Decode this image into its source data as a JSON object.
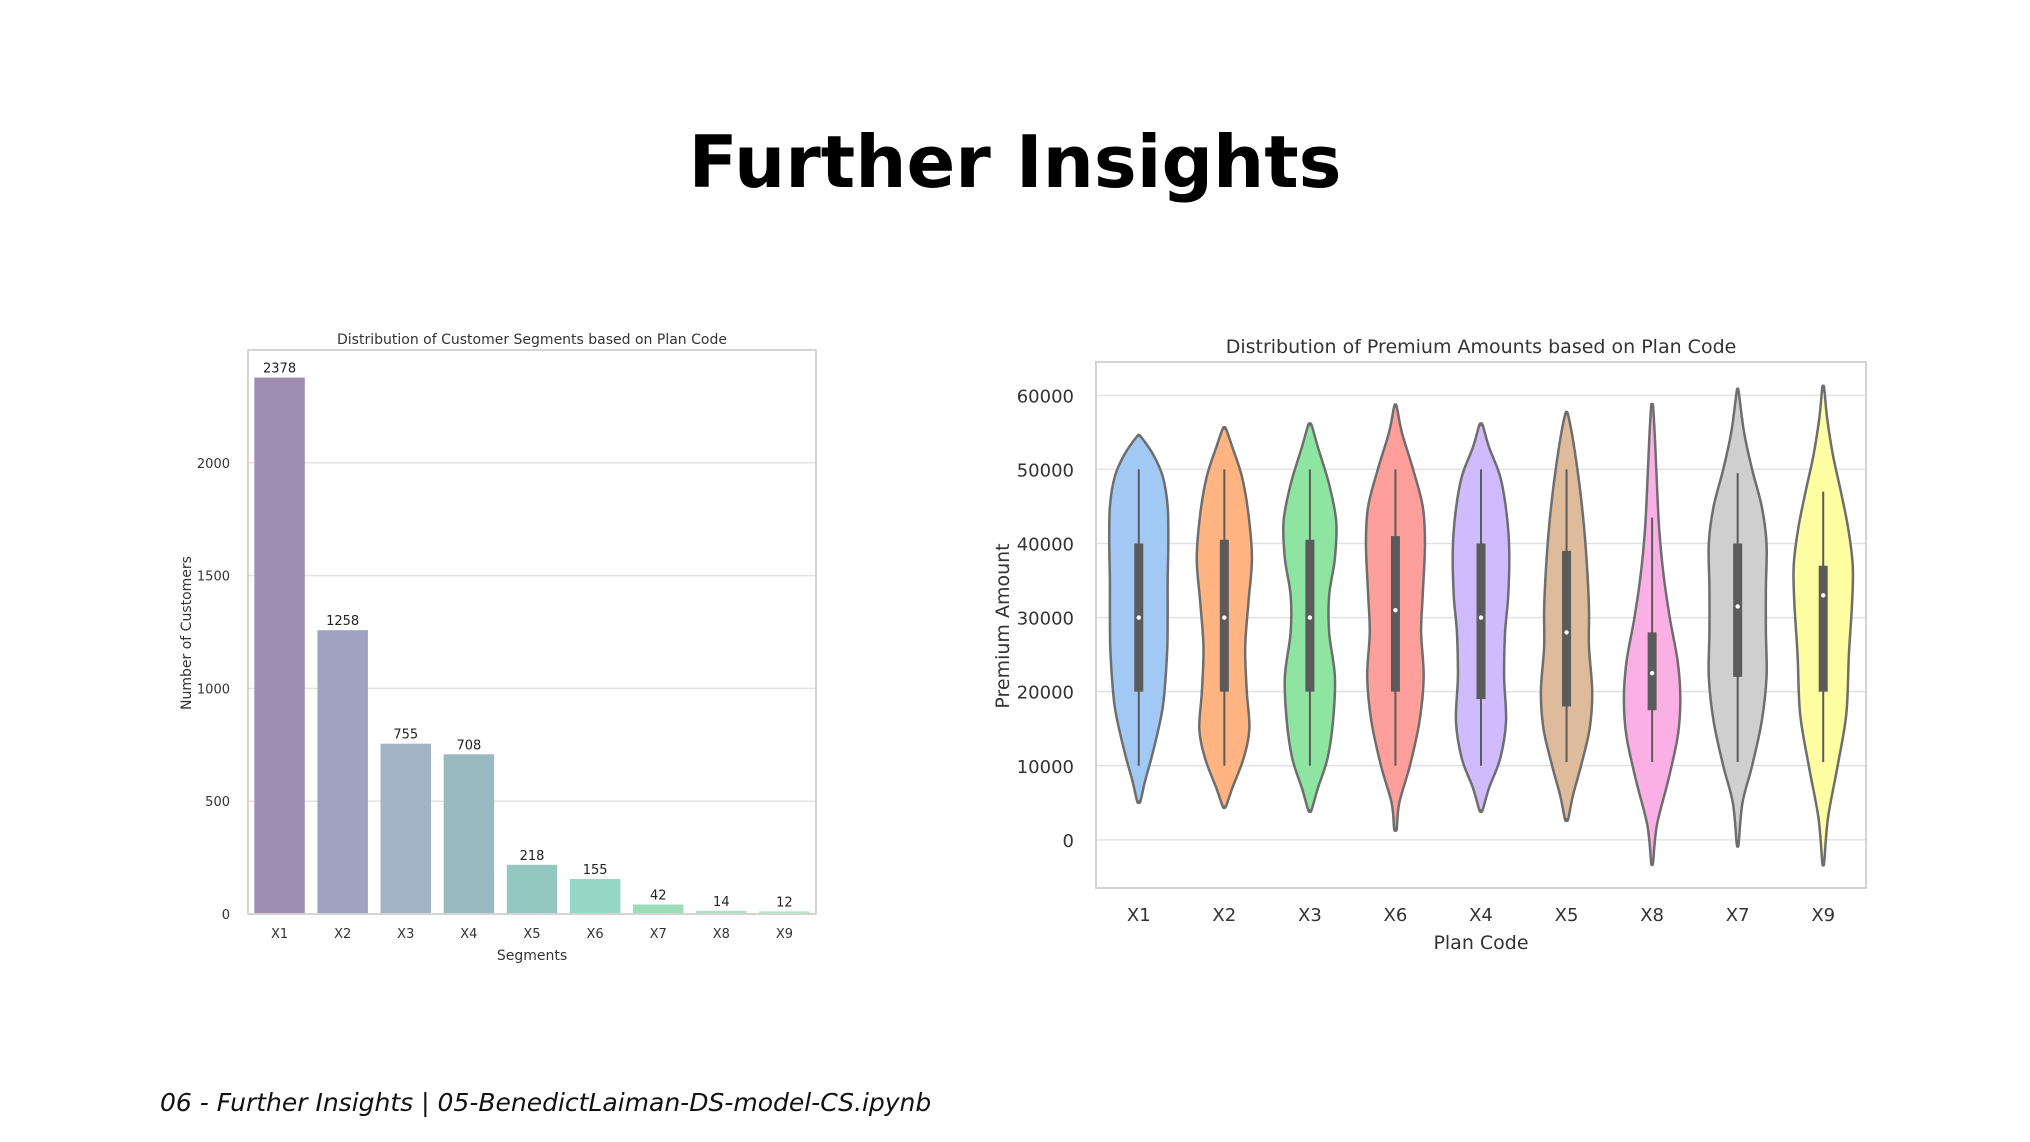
{
  "slide": {
    "title": "Further Insights",
    "footer": "06 - Further Insights | 05-BenedictLaiman-DS-model-CS.ipynb"
  },
  "chart_data": [
    {
      "type": "bar",
      "title": "Distribution of Customer Segments based on Plan Code",
      "xlabel": "Segments",
      "ylabel": "Number of Customers",
      "categories": [
        "X1",
        "X2",
        "X3",
        "X4",
        "X5",
        "X6",
        "X7",
        "X8",
        "X9"
      ],
      "values": [
        2378,
        1258,
        755,
        708,
        218,
        155,
        42,
        14,
        12
      ],
      "data_labels": [
        "2378",
        "1258",
        "755",
        "708",
        "218",
        "155",
        "42",
        "14",
        "12"
      ],
      "yticks": [
        0,
        500,
        1000,
        1500,
        2000
      ],
      "ylim": [
        0,
        2500
      ],
      "grid": true,
      "colors": [
        "#a08eb2",
        "#a0a3c0",
        "#a0b3c7",
        "#98b9bf",
        "#93c8c0",
        "#96d6c4",
        "#9bdcb9",
        "#a7e4c0",
        "#b4eac6"
      ]
    },
    {
      "type": "violin",
      "title": "Distribution of Premium Amounts based on Plan Code",
      "xlabel": "Plan Code",
      "ylabel": "Premium Amount",
      "categories": [
        "X1",
        "X2",
        "X3",
        "X6",
        "X4",
        "X5",
        "X8",
        "X7",
        "X9"
      ],
      "yticks": [
        0,
        10000,
        20000,
        30000,
        40000,
        50000,
        60000
      ],
      "ylim": [
        -6500,
        64500
      ],
      "grid": true,
      "series": [
        {
          "category": "X1",
          "color": "#a1c9f4",
          "min": 5200,
          "max": 54500,
          "whisker_low": 10000,
          "whisker_high": 50000,
          "q1": 20000,
          "median": 30000,
          "q3": 40000,
          "max_width": 0.75,
          "density": [
            [
              5200,
              0.05
            ],
            [
              8000,
              0.2
            ],
            [
              12000,
              0.45
            ],
            [
              18000,
              0.75
            ],
            [
              25000,
              0.88
            ],
            [
              30000,
              0.9
            ],
            [
              35000,
              0.9
            ],
            [
              40000,
              0.92
            ],
            [
              45000,
              0.9
            ],
            [
              49000,
              0.75
            ],
            [
              52000,
              0.45
            ],
            [
              54500,
              0.05
            ]
          ]
        },
        {
          "category": "X2",
          "color": "#ffb482",
          "min": 4500,
          "max": 55500,
          "whisker_low": 10000,
          "whisker_high": 50000,
          "q1": 20000,
          "median": 30000,
          "q3": 40500,
          "max_width": 0.75,
          "density": [
            [
              4500,
              0.05
            ],
            [
              7000,
              0.25
            ],
            [
              11000,
              0.6
            ],
            [
              15000,
              0.78
            ],
            [
              20000,
              0.7
            ],
            [
              26000,
              0.65
            ],
            [
              32000,
              0.75
            ],
            [
              38000,
              0.86
            ],
            [
              44000,
              0.75
            ],
            [
              49000,
              0.55
            ],
            [
              53000,
              0.25
            ],
            [
              55500,
              0.05
            ]
          ]
        },
        {
          "category": "X3",
          "color": "#8de5a1",
          "min": 4000,
          "max": 56000,
          "whisker_low": 10000,
          "whisker_high": 50000,
          "q1": 20000,
          "median": 30000,
          "q3": 40500,
          "max_width": 0.75,
          "density": [
            [
              4000,
              0.05
            ],
            [
              7000,
              0.25
            ],
            [
              11000,
              0.55
            ],
            [
              16000,
              0.72
            ],
            [
              22000,
              0.78
            ],
            [
              28000,
              0.6
            ],
            [
              33000,
              0.6
            ],
            [
              38000,
              0.78
            ],
            [
              43000,
              0.82
            ],
            [
              48000,
              0.6
            ],
            [
              53000,
              0.25
            ],
            [
              56000,
              0.05
            ]
          ]
        },
        {
          "category": "X6",
          "color": "#ff9f9b",
          "min": 1500,
          "max": 58500,
          "whisker_low": 10000,
          "whisker_high": 50000,
          "q1": 20000,
          "median": 31000,
          "q3": 41000,
          "max_width": 0.75,
          "density": [
            [
              1500,
              0.04
            ],
            [
              5000,
              0.12
            ],
            [
              10000,
              0.45
            ],
            [
              16000,
              0.75
            ],
            [
              22000,
              0.88
            ],
            [
              28000,
              0.8
            ],
            [
              33000,
              0.85
            ],
            [
              40000,
              0.92
            ],
            [
              45000,
              0.85
            ],
            [
              50000,
              0.55
            ],
            [
              55000,
              0.2
            ],
            [
              58500,
              0.04
            ]
          ]
        },
        {
          "category": "X4",
          "color": "#d0bbff",
          "min": 4000,
          "max": 56000,
          "whisker_low": 10000,
          "whisker_high": 50000,
          "q1": 19000,
          "median": 30000,
          "q3": 40000,
          "max_width": 0.75,
          "density": [
            [
              4000,
              0.05
            ],
            [
              7000,
              0.25
            ],
            [
              11000,
              0.6
            ],
            [
              16000,
              0.78
            ],
            [
              22000,
              0.72
            ],
            [
              28000,
              0.75
            ],
            [
              33000,
              0.85
            ],
            [
              39000,
              0.88
            ],
            [
              44000,
              0.8
            ],
            [
              49000,
              0.6
            ],
            [
              53000,
              0.25
            ],
            [
              56000,
              0.05
            ]
          ]
        },
        {
          "category": "X5",
          "color": "#debb9b",
          "min": 2800,
          "max": 57500,
          "whisker_low": 10500,
          "whisker_high": 50000,
          "q1": 18000,
          "median": 28000,
          "q3": 39000,
          "max_width": 0.75,
          "density": [
            [
              2800,
              0.05
            ],
            [
              6000,
              0.2
            ],
            [
              10000,
              0.45
            ],
            [
              15000,
              0.72
            ],
            [
              20000,
              0.8
            ],
            [
              26000,
              0.7
            ],
            [
              31000,
              0.7
            ],
            [
              36000,
              0.65
            ],
            [
              42000,
              0.55
            ],
            [
              48000,
              0.4
            ],
            [
              54000,
              0.2
            ],
            [
              57500,
              0.04
            ]
          ]
        },
        {
          "category": "X8",
          "color": "#fab0e4",
          "min": -3000,
          "max": 58500,
          "whisker_low": 10500,
          "whisker_high": 43500,
          "q1": 17500,
          "median": 22500,
          "q3": 28000,
          "max_width": 0.75,
          "density": [
            [
              -3000,
              0.03
            ],
            [
              2000,
              0.15
            ],
            [
              8000,
              0.5
            ],
            [
              14000,
              0.8
            ],
            [
              19000,
              0.88
            ],
            [
              24000,
              0.8
            ],
            [
              30000,
              0.55
            ],
            [
              36000,
              0.35
            ],
            [
              42000,
              0.22
            ],
            [
              48000,
              0.15
            ],
            [
              54000,
              0.09
            ],
            [
              58500,
              0.03
            ]
          ]
        },
        {
          "category": "X7",
          "color": "#cfcfcf",
          "min": -500,
          "max": 60500,
          "whisker_low": 10500,
          "whisker_high": 49500,
          "q1": 22000,
          "median": 31500,
          "q3": 40000,
          "max_width": 0.75,
          "density": [
            [
              -500,
              0.03
            ],
            [
              5000,
              0.15
            ],
            [
              10000,
              0.45
            ],
            [
              16000,
              0.75
            ],
            [
              22000,
              0.9
            ],
            [
              28000,
              0.88
            ],
            [
              34000,
              0.88
            ],
            [
              40000,
              0.9
            ],
            [
              45000,
              0.75
            ],
            [
              50000,
              0.45
            ],
            [
              55000,
              0.2
            ],
            [
              60500,
              0.03
            ]
          ]
        },
        {
          "category": "X9",
          "color": "#fffea3",
          "min": -3000,
          "max": 61000,
          "whisker_low": 10500,
          "whisker_high": 47000,
          "q1": 20000,
          "median": 33000,
          "q3": 37000,
          "max_width": 0.75,
          "density": [
            [
              -3000,
              0.03
            ],
            [
              3000,
              0.15
            ],
            [
              10000,
              0.45
            ],
            [
              17000,
              0.72
            ],
            [
              25000,
              0.8
            ],
            [
              32000,
              0.9
            ],
            [
              37000,
              0.92
            ],
            [
              42000,
              0.78
            ],
            [
              47000,
              0.55
            ],
            [
              52000,
              0.3
            ],
            [
              57000,
              0.12
            ],
            [
              61000,
              0.03
            ]
          ]
        }
      ]
    }
  ]
}
